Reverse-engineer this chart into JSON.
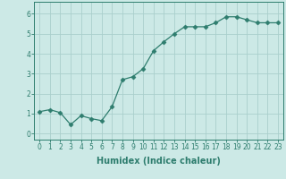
{
  "x": [
    0,
    1,
    2,
    3,
    4,
    5,
    6,
    7,
    8,
    9,
    10,
    11,
    12,
    13,
    14,
    15,
    16,
    17,
    18,
    19,
    20,
    21,
    22,
    23
  ],
  "y": [
    1.1,
    1.2,
    1.05,
    0.45,
    0.9,
    0.75,
    0.65,
    1.35,
    2.7,
    2.85,
    3.25,
    4.15,
    4.6,
    5.0,
    5.35,
    5.35,
    5.35,
    5.55,
    5.85,
    5.85,
    5.7,
    5.55,
    5.55,
    5.55
  ],
  "line_color": "#2e7d6e",
  "marker": "D",
  "marker_size": 2.5,
  "bg_color": "#cce9e6",
  "grid_color": "#aacfcc",
  "xlabel": "Humidex (Indice chaleur)",
  "xlim": [
    -0.5,
    23.5
  ],
  "ylim": [
    -0.3,
    6.6
  ],
  "yticks": [
    0,
    1,
    2,
    3,
    4,
    5,
    6
  ],
  "xticks": [
    0,
    1,
    2,
    3,
    4,
    5,
    6,
    7,
    8,
    9,
    10,
    11,
    12,
    13,
    14,
    15,
    16,
    17,
    18,
    19,
    20,
    21,
    22,
    23
  ],
  "tick_fontsize": 5.5,
  "label_fontsize": 7.0
}
